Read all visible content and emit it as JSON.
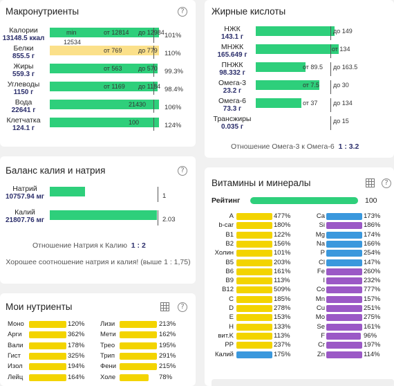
{
  "colors": {
    "green": "#2ecf7b",
    "yellow": "#f3d400",
    "pale_yellow": "#fbe08a",
    "blue": "#3a98dd",
    "purple": "#9b59c6",
    "navy": "#2a2d6a"
  },
  "macro": {
    "title": "Макронутриенты",
    "help": "?",
    "min_label": "min",
    "calorie_extra": "12534",
    "rows": [
      {
        "name": "Калории",
        "value": "13148.5 ккал",
        "from": "от 12814",
        "to": "до 12984",
        "inside": "min",
        "pct": "101%",
        "fill": 1.0,
        "color": "green"
      },
      {
        "name": "Белки",
        "value": "855.5 г",
        "from": "от 769",
        "to": "до 779",
        "pct": "110%",
        "fill": 1.0,
        "color": "pale_yellow"
      },
      {
        "name": "Жиры",
        "value": "559.3 г",
        "from": "от 563",
        "to": "до 570",
        "pct": "99.3%",
        "fill": 0.985,
        "color": "green"
      },
      {
        "name": "Углеводы",
        "value": "1150 г",
        "from": "от 1169",
        "to": "до 1184",
        "pct": "98.4%",
        "fill": 0.985,
        "color": "green"
      },
      {
        "name": "Вода",
        "value": "22641 г",
        "inside": "21430",
        "pct": "106%",
        "fill": 1.0,
        "color": "green"
      },
      {
        "name": "Клетчатка",
        "value": "124.1 г",
        "inside": "100",
        "pct": "124%",
        "fill": 1.0,
        "color": "green"
      }
    ]
  },
  "fat": {
    "title": "Жирные кислоты",
    "rows": [
      {
        "name": "НЖК",
        "value": "143.1 г",
        "to": "до 149",
        "fill": 0.95
      },
      {
        "name": "МНЖК",
        "value": "165.649 г",
        "from": "от 134",
        "fill": 1.0
      },
      {
        "name": "ПНЖК",
        "value": "98.332 г",
        "from": "от 89.5",
        "to": "до 163.5",
        "fill": 0.6
      },
      {
        "name": "Омега-3",
        "value": "23.2 г",
        "from": "от 7.5",
        "to": "до 30",
        "fill": 0.77
      },
      {
        "name": "Омега-6",
        "value": "73.3 г",
        "from": "от 37",
        "to": "до 134",
        "fill": 0.55
      },
      {
        "name": "Трансжиры",
        "value": "0.035 г",
        "to": "до 15",
        "fill": 0.0
      }
    ],
    "ratio_label": "Отношение Омега-3 к Омега-6",
    "ratio_value": "1 : 3.2"
  },
  "balance": {
    "title": "Баланс калия и натрия",
    "help": "?",
    "rows": [
      {
        "name": "Натрий",
        "value": "10757.94 мг",
        "tick": "1",
        "fill": 0.33
      },
      {
        "name": "Калий",
        "value": "21807.76 мг",
        "tick": "2.03",
        "fill": 1.0
      }
    ],
    "ratio_label": "Отношение Натрия к Калию",
    "ratio_value": "1 : 2",
    "note": "Хорошее соотношение натрия и калия! (выше 1 : 1,75)"
  },
  "vit": {
    "title": "Витамины и минералы",
    "help": "?",
    "rating_label": "Рейтинг",
    "rating_value": "100",
    "rating_fill": 1.0,
    "left": [
      {
        "name": "A",
        "pct": "477%",
        "color": "yellow"
      },
      {
        "name": "b-car",
        "pct": "180%",
        "color": "yellow"
      },
      {
        "name": "B1",
        "pct": "122%",
        "color": "yellow"
      },
      {
        "name": "B2",
        "pct": "156%",
        "color": "yellow"
      },
      {
        "name": "Холин",
        "pct": "101%",
        "color": "yellow"
      },
      {
        "name": "B5",
        "pct": "203%",
        "color": "yellow"
      },
      {
        "name": "B6",
        "pct": "161%",
        "color": "yellow"
      },
      {
        "name": "B9",
        "pct": "113%",
        "color": "yellow"
      },
      {
        "name": "B12",
        "pct": "509%",
        "color": "yellow"
      },
      {
        "name": "C",
        "pct": "185%",
        "color": "yellow"
      },
      {
        "name": "D",
        "pct": "278%",
        "color": "yellow"
      },
      {
        "name": "E",
        "pct": "153%",
        "color": "yellow"
      },
      {
        "name": "H",
        "pct": "133%",
        "color": "yellow"
      },
      {
        "name": "вит.K",
        "pct": "113%",
        "color": "yellow"
      },
      {
        "name": "PP",
        "pct": "237%",
        "color": "yellow"
      },
      {
        "name": "Калий",
        "pct": "175%",
        "color": "blue"
      }
    ],
    "right": [
      {
        "name": "Ca",
        "pct": "173%",
        "color": "blue"
      },
      {
        "name": "Si",
        "pct": "186%",
        "color": "purple"
      },
      {
        "name": "Mg",
        "pct": "174%",
        "color": "blue"
      },
      {
        "name": "Na",
        "pct": "166%",
        "color": "blue"
      },
      {
        "name": "P",
        "pct": "254%",
        "color": "blue"
      },
      {
        "name": "Cl",
        "pct": "147%",
        "color": "blue"
      },
      {
        "name": "Fe",
        "pct": "260%",
        "color": "purple"
      },
      {
        "name": "I",
        "pct": "232%",
        "color": "purple"
      },
      {
        "name": "Co",
        "pct": "777%",
        "color": "purple"
      },
      {
        "name": "Mn",
        "pct": "157%",
        "color": "purple"
      },
      {
        "name": "Cu",
        "pct": "251%",
        "color": "purple"
      },
      {
        "name": "Mo",
        "pct": "275%",
        "color": "purple"
      },
      {
        "name": "Se",
        "pct": "161%",
        "color": "purple"
      },
      {
        "name": "F",
        "pct": "96%",
        "color": "purple",
        "fill": 0.96
      },
      {
        "name": "Cr",
        "pct": "197%",
        "color": "purple"
      },
      {
        "name": "Zn",
        "pct": "114%",
        "color": "purple"
      }
    ]
  },
  "my": {
    "title": "Мои нутриенты",
    "help": "?",
    "left": [
      {
        "name": "Моно",
        "pct": "120%"
      },
      {
        "name": "Арги",
        "pct": "362%"
      },
      {
        "name": "Вали",
        "pct": "178%"
      },
      {
        "name": "Гист",
        "pct": "325%"
      },
      {
        "name": "Изол",
        "pct": "194%"
      },
      {
        "name": "Лейц",
        "pct": "164%"
      }
    ],
    "right": [
      {
        "name": "Лизи",
        "pct": "213%"
      },
      {
        "name": "Мети",
        "pct": "162%"
      },
      {
        "name": "Трео",
        "pct": "195%"
      },
      {
        "name": "Трип",
        "pct": "291%"
      },
      {
        "name": "Фени",
        "pct": "215%"
      },
      {
        "name": "Холе",
        "pct": "78%",
        "fill": 0.78
      }
    ]
  }
}
